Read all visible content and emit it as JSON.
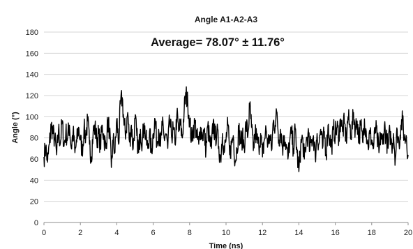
{
  "chart_data": {
    "type": "line",
    "title": "Angle A1-A2-A3",
    "annotation": "Average= 78.07° ± 11.76°",
    "xlabel": "Time (ns)",
    "ylabel": "Angle (°)",
    "xlim": [
      0,
      20
    ],
    "ylim": [
      0,
      180
    ],
    "x_ticks": [
      0,
      2,
      4,
      6,
      8,
      10,
      12,
      14,
      16,
      18,
      20
    ],
    "y_ticks": [
      0,
      20,
      40,
      60,
      80,
      100,
      120,
      140,
      160,
      180
    ],
    "grid": "horizontal",
    "legend": "none",
    "series": [
      {
        "color": "#000000",
        "x": [
          0.0,
          0.1,
          0.2,
          0.3,
          0.4,
          0.5,
          0.6,
          0.7,
          0.8,
          0.9,
          1.0,
          1.1,
          1.2,
          1.3,
          1.4,
          1.5,
          1.6,
          1.7,
          1.8,
          1.9,
          2.0,
          2.1,
          2.2,
          2.3,
          2.4,
          2.5,
          2.6,
          2.7,
          2.8,
          2.9,
          3.0,
          3.1,
          3.2,
          3.3,
          3.4,
          3.5,
          3.6,
          3.7,
          3.8,
          3.9,
          4.0,
          4.1,
          4.2,
          4.3,
          4.4,
          4.5,
          4.6,
          4.7,
          4.8,
          4.9,
          5.0,
          5.1,
          5.2,
          5.3,
          5.4,
          5.5,
          5.6,
          5.7,
          5.8,
          5.9,
          6.0,
          6.1,
          6.2,
          6.3,
          6.4,
          6.5,
          6.6,
          6.7,
          6.8,
          6.9,
          7.0,
          7.1,
          7.2,
          7.3,
          7.4,
          7.5,
          7.6,
          7.7,
          7.8,
          7.9,
          8.0,
          8.1,
          8.2,
          8.3,
          8.4,
          8.5,
          8.6,
          8.7,
          8.8,
          8.9,
          9.0,
          9.1,
          9.2,
          9.3,
          9.4,
          9.5,
          9.6,
          9.7,
          9.8,
          9.9,
          10.0,
          10.1,
          10.2,
          10.3,
          10.4,
          10.5,
          10.6,
          10.7,
          10.8,
          10.9,
          11.0,
          11.1,
          11.2,
          11.3,
          11.4,
          11.5,
          11.6,
          11.7,
          11.8,
          11.9,
          12.0,
          12.1,
          12.2,
          12.3,
          12.4,
          12.5,
          12.6,
          12.7,
          12.8,
          12.9,
          13.0,
          13.1,
          13.2,
          13.3,
          13.4,
          13.5,
          13.6,
          13.7,
          13.8,
          13.9,
          14.0,
          14.1,
          14.2,
          14.3,
          14.4,
          14.5,
          14.6,
          14.7,
          14.8,
          14.9,
          15.0,
          15.1,
          15.2,
          15.3,
          15.4,
          15.5,
          15.6,
          15.7,
          15.8,
          15.9,
          16.0,
          16.1,
          16.2,
          16.3,
          16.4,
          16.5,
          16.6,
          16.7,
          16.8,
          16.9,
          17.0,
          17.1,
          17.2,
          17.3,
          17.4,
          17.5,
          17.6,
          17.7,
          17.8,
          17.9,
          18.0,
          18.1,
          18.2,
          18.3,
          18.4,
          18.5,
          18.6,
          18.7,
          18.8,
          18.9,
          19.0,
          19.1,
          19.2,
          19.3,
          19.4,
          19.5,
          19.6,
          19.7,
          19.8,
          19.9,
          20.0
        ],
        "values": [
          62,
          71,
          57,
          74,
          92,
          84,
          78,
          64,
          88,
          75,
          96,
          72,
          85,
          80,
          92,
          70,
          86,
          66,
          76,
          90,
          78,
          68,
          88,
          82,
          96,
          74,
          62,
          85,
          90,
          78,
          84,
          72,
          92,
          80,
          70,
          95,
          88,
          52,
          78,
          66,
          98,
          74,
          112,
          118,
          92,
          84,
          104,
          76,
          92,
          70,
          98,
          82,
          66,
          88,
          76,
          94,
          78,
          70,
          86,
          66,
          84,
          98,
          76,
          88,
          72,
          92,
          80,
          84,
          70,
          96,
          82,
          88,
          74,
          102,
          86,
          92,
          80,
          106,
          122,
          112,
          98,
          78,
          88,
          94,
          80,
          74,
          90,
          82,
          86,
          68,
          92,
          76,
          70,
          96,
          80,
          86,
          72,
          60,
          84,
          66,
          78,
          92,
          64,
          74,
          82,
          58,
          70,
          88,
          76,
          80,
          72,
          94,
          82,
          110,
          90,
          68,
          86,
          78,
          72,
          84,
          62,
          78,
          88,
          74,
          82,
          68,
          96,
          92,
          104,
          78,
          88,
          70,
          82,
          74,
          60,
          78,
          84,
          70,
          88,
          66,
          48,
          72,
          80,
          60,
          76,
          84,
          68,
          78,
          82,
          62,
          84,
          74,
          88,
          70,
          86,
          64,
          92,
          78,
          72,
          88,
          84,
          90,
          82,
          98,
          86,
          94,
          78,
          100,
          90,
          84,
          104,
          88,
          96,
          80,
          92,
          76,
          98,
          86,
          72,
          84,
          78,
          70,
          90,
          80,
          66,
          84,
          74,
          92,
          80,
          70,
          86,
          72,
          84,
          60,
          88,
          74,
          92,
          96,
          78,
          82,
          64
        ]
      }
    ]
  }
}
